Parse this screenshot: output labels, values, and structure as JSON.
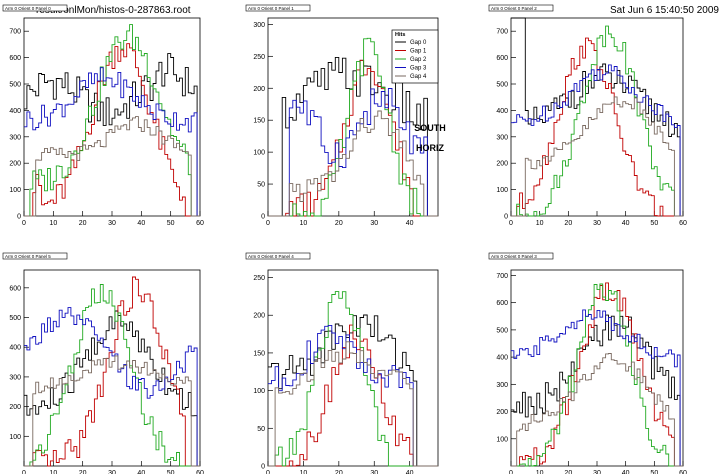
{
  "header": {
    "file": "result/onlMon/histos-0-287863.root",
    "date": "Sat Jun  6 15:40:50 2009"
  },
  "annotation": [
    "SOUTH",
    "HORIZ"
  ],
  "colors": {
    "Gap 0": "#000000",
    "Gap 1": "#c00000",
    "Gap 2": "#22aa22",
    "Gap 3": "#1010c0",
    "Gap 4": "#7a6a60"
  },
  "chart_data": [
    {
      "type": "line",
      "title": "Arm 0 Orient 0 Panel 0",
      "x": [
        0,
        60
      ],
      "xticks": [
        0,
        10,
        20,
        30,
        40,
        50,
        60
      ],
      "ylim": [
        0,
        750
      ],
      "yticks": [
        0,
        100,
        200,
        300,
        400,
        500,
        600,
        700
      ],
      "series": [
        {
          "name": "Gap 0",
          "profile": "black0"
        },
        {
          "name": "Gap 1",
          "profile": "red0"
        },
        {
          "name": "Gap 2",
          "profile": "green0"
        },
        {
          "name": "Gap 3",
          "profile": "blue0"
        },
        {
          "name": "Gap 4",
          "profile": "brown0"
        }
      ]
    },
    {
      "type": "line",
      "title": "Arm 0 Orient 0 Panel 1",
      "x": [
        0,
        48
      ],
      "xticks": [
        0,
        10,
        20,
        30,
        40
      ],
      "ylim": [
        0,
        310
      ],
      "yticks": [
        0,
        50,
        100,
        150,
        200,
        250,
        300
      ],
      "legend": {
        "title": "Hits",
        "entries": [
          "Gap 0",
          "Gap 1",
          "Gap 2",
          "Gap 3",
          "Gap 4"
        ],
        "position": "top-right"
      },
      "series": [
        {
          "name": "Gap 0",
          "profile": "black1"
        },
        {
          "name": "Gap 1",
          "profile": "red1"
        },
        {
          "name": "Gap 2",
          "profile": "green1"
        },
        {
          "name": "Gap 3",
          "profile": "blue1"
        },
        {
          "name": "Gap 4",
          "profile": "brown1"
        }
      ]
    },
    {
      "type": "line",
      "title": "Arm 0 Orient 0 Panel 2",
      "x": [
        0,
        60
      ],
      "xticks": [
        0,
        10,
        20,
        30,
        40,
        50,
        60
      ],
      "ylim": [
        0,
        750
      ],
      "yticks": [
        0,
        100,
        200,
        300,
        400,
        500,
        600,
        700
      ],
      "series": [
        {
          "name": "Gap 0",
          "profile": "black2"
        },
        {
          "name": "Gap 1",
          "profile": "red2"
        },
        {
          "name": "Gap 2",
          "profile": "green2"
        },
        {
          "name": "Gap 3",
          "profile": "blue2"
        },
        {
          "name": "Gap 4",
          "profile": "brown2"
        }
      ]
    },
    {
      "type": "line",
      "title": "Arm 0 Orient 0 Panel 5",
      "x": [
        0,
        60
      ],
      "xticks": [
        0,
        10,
        20,
        30,
        40,
        50,
        60
      ],
      "ylim": [
        0,
        660
      ],
      "yticks": [
        100,
        200,
        300,
        400,
        500,
        600
      ],
      "series": [
        {
          "name": "Gap 0",
          "profile": "black3"
        },
        {
          "name": "Gap 1",
          "profile": "red3"
        },
        {
          "name": "Gap 2",
          "profile": "green3"
        },
        {
          "name": "Gap 3",
          "profile": "blue3"
        },
        {
          "name": "Gap 4",
          "profile": "brown3"
        }
      ]
    },
    {
      "type": "line",
      "title": "Arm 0 Orient 0 Panel 4",
      "x": [
        0,
        48
      ],
      "xticks": [
        0,
        10,
        20,
        30,
        40
      ],
      "ylim": [
        0,
        260
      ],
      "yticks": [
        0,
        50,
        100,
        150,
        200,
        250
      ],
      "series": [
        {
          "name": "Gap 0",
          "profile": "black4"
        },
        {
          "name": "Gap 1",
          "profile": "red4"
        },
        {
          "name": "Gap 2",
          "profile": "green4"
        },
        {
          "name": "Gap 3",
          "profile": "blue4"
        },
        {
          "name": "Gap 4",
          "profile": "brown4"
        }
      ]
    },
    {
      "type": "line",
      "title": "Arm 0 Orient 0 Panel 3",
      "x": [
        0,
        60
      ],
      "xticks": [
        0,
        10,
        20,
        30,
        40,
        50,
        60
      ],
      "ylim": [
        0,
        720
      ],
      "yticks": [
        100,
        200,
        300,
        400,
        500,
        600,
        700
      ],
      "series": [
        {
          "name": "Gap 0",
          "profile": "black5"
        },
        {
          "name": "Gap 1",
          "profile": "red5"
        },
        {
          "name": "Gap 2",
          "profile": "green5"
        },
        {
          "name": "Gap 3",
          "profile": "blue5"
        },
        {
          "name": "Gap 4",
          "profile": "brown5"
        }
      ]
    }
  ]
}
